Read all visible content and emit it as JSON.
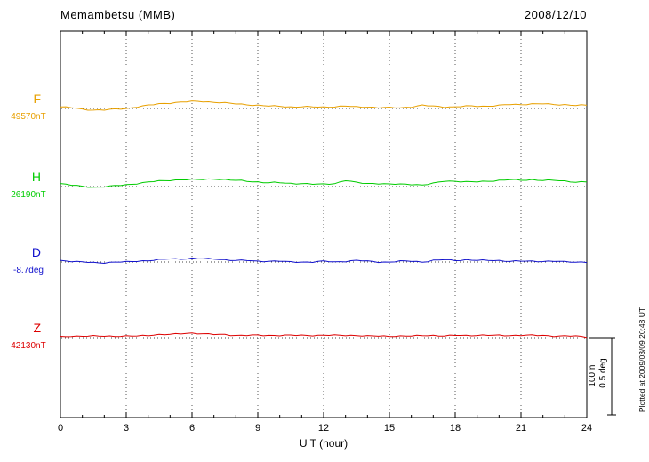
{
  "header": {
    "station": "Memambetsu (MMB)",
    "date": "2008/12/10"
  },
  "x_axis": {
    "label": "U T (hour)",
    "ticks": [
      0,
      3,
      6,
      9,
      12,
      15,
      18,
      21,
      24
    ],
    "min": 0,
    "max": 24
  },
  "scale_bar": {
    "nt_label": "100 nT",
    "deg_label": "0.5 deg"
  },
  "footer_note": "Plotted at 2009/03/09 20:48 UT",
  "chart_data": {
    "type": "line",
    "title": "Memambetsu (MMB) magnetogram, 2008/12/10",
    "xlabel": "U T (hour)",
    "x_range_hours": [
      0,
      24
    ],
    "x_step_hours": 0.5,
    "grid": "dotted vertical gridlines every 3 hours; dotted horizontal baseline for each trace",
    "legend_position": "left margin, one colored letter per trace",
    "series": [
      {
        "id": "F",
        "label": "F",
        "baseline_label": "49570nT",
        "baseline_value": 49570,
        "units": "nT",
        "scale_units_per_bar": 100,
        "color": "#e8a000",
        "deviation": [
          2,
          1,
          -1,
          -2,
          -2,
          -1,
          0,
          2,
          4,
          6,
          7,
          8,
          9,
          9,
          8,
          7,
          6,
          5,
          4,
          3,
          3,
          2,
          2,
          2,
          2,
          2,
          3,
          2,
          2,
          1,
          1,
          1,
          2,
          4,
          3,
          2,
          2,
          3,
          3,
          3,
          4,
          5,
          5,
          6,
          6,
          5,
          5,
          4,
          4
        ]
      },
      {
        "id": "H",
        "label": "H",
        "baseline_label": "26190nT",
        "baseline_value": 26190,
        "units": "nT",
        "scale_units_per_bar": 100,
        "color": "#00cc00",
        "deviation": [
          4,
          2,
          0,
          -1,
          0,
          1,
          2,
          4,
          6,
          7,
          8,
          9,
          9,
          9,
          10,
          9,
          8,
          7,
          6,
          5,
          5,
          4,
          4,
          3,
          3,
          4,
          8,
          5,
          4,
          4,
          3,
          3,
          3,
          2,
          4,
          7,
          7,
          6,
          6,
          7,
          8,
          9,
          8,
          9,
          8,
          8,
          7,
          6,
          6
        ]
      },
      {
        "id": "D",
        "label": "D",
        "baseline_label": "-8.7deg",
        "baseline_value": -8.7,
        "units": "deg",
        "scale_units_per_bar": 0.5,
        "color": "#1111cc",
        "deviation": [
          0.01,
          0.005,
          0,
          -0.005,
          -0.005,
          0,
          0,
          0.005,
          0.01,
          0.015,
          0.02,
          0.02,
          0.025,
          0.02,
          0.02,
          0.015,
          0.01,
          0.01,
          0.005,
          0.005,
          0.005,
          0,
          0,
          0,
          0.005,
          0,
          0.005,
          0.01,
          0.005,
          0,
          0,
          0.005,
          0.005,
          0,
          0.01,
          0.015,
          0.01,
          0.015,
          0.01,
          0.01,
          0.01,
          0.005,
          0.005,
          0.005,
          0.005,
          0.005,
          0,
          0,
          0
        ]
      },
      {
        "id": "Z",
        "label": "Z",
        "baseline_label": "42130nT",
        "baseline_value": 42130,
        "units": "nT",
        "scale_units_per_bar": 100,
        "color": "#dd0000",
        "deviation": [
          1,
          2,
          2,
          2,
          2,
          2,
          2,
          2,
          3,
          4,
          4,
          5,
          6,
          5,
          4,
          4,
          3,
          3,
          3,
          3,
          3,
          3,
          3,
          3,
          3,
          3,
          3,
          3,
          2,
          2,
          2,
          2,
          2,
          3,
          3,
          2,
          3,
          3,
          3,
          3,
          3,
          3,
          3,
          3,
          3,
          2,
          2,
          2,
          1
        ]
      }
    ]
  }
}
